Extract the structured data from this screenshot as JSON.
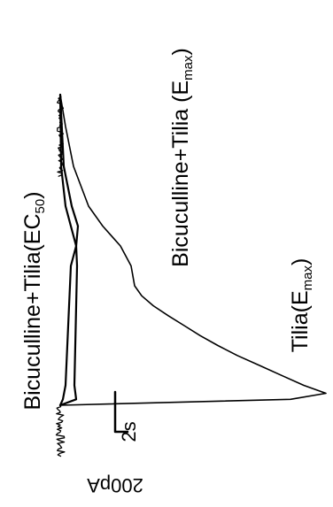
{
  "chart_data": {
    "type": "line",
    "title": "",
    "annotations": {
      "tilia_base": "Tilia(E",
      "tilia_sub": "max",
      "tilia_close": ")",
      "bt_emax_base": "Bicuculline+Tilia (E",
      "bt_emax_sub": "max",
      "bt_emax_close": ")",
      "bt_ec50_base": "Bicuculline+Tilia(EC",
      "bt_ec50_sub": "50",
      "bt_ec50_close": ")"
    },
    "scale_bars": {
      "time_label": "2s",
      "current_label": "200pA"
    },
    "time_units": "s",
    "current_units": "pA",
    "series": [
      {
        "name": "Tilia(Emax)",
        "time": [
          0,
          0.3,
          0.6,
          1.0,
          1.5,
          2.0,
          2.5,
          3.0,
          3.5,
          4.0,
          4.5,
          5.0,
          5.5,
          6.0,
          7.0,
          8.0,
          9.0,
          10.0,
          12.0,
          14.0,
          15.6
        ],
        "current": [
          0,
          -260,
          -300,
          -275,
          -250,
          -225,
          -200,
          -178,
          -158,
          -140,
          -122,
          -105,
          -92,
          -84,
          -80,
          -68,
          -48,
          -32,
          -15,
          -6,
          0
        ]
      },
      {
        "name": "Bicuculline+Tilia (Emax)",
        "time": [
          0,
          0.3,
          1.0,
          3.0,
          5.0,
          7.0,
          8.0,
          9.0,
          10.0,
          12.0,
          15.6
        ],
        "current": [
          0,
          -18,
          -16,
          -17,
          -18,
          -19,
          -18,
          -12,
          -6,
          -1,
          0
        ]
      },
      {
        "name": "Bicuculline+Tilia(EC50)",
        "time": [
          0,
          0.3,
          1.0,
          3.0,
          5.0,
          7.0,
          8.0,
          9.0,
          10.0,
          12.0,
          15.6
        ],
        "current": [
          0,
          -3,
          -6,
          -8,
          -10,
          -12,
          -18,
          -20,
          -13,
          -4,
          0
        ]
      }
    ]
  }
}
